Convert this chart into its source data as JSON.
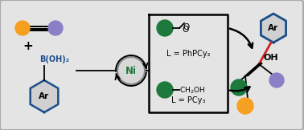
{
  "bg_color": "#e4e4e4",
  "border_color": "#aaaaaa",
  "orange": "#F5A020",
  "purple": "#8B80C8",
  "green": "#1E7A3C",
  "blue_dark": "#1B4F8A",
  "red": "#CC2222",
  "ni_fill": "#d8d8d8",
  "ni_text": "#1E7A3C",
  "ar_fill": "#d0d0d0",
  "label_L1": "L = PhPCy₂",
  "label_L2": "L = PCy₃",
  "oh_label": "OH",
  "boron_label": "B(OH)₂",
  "ni_label": "Ni",
  "ar_label": "Ar"
}
